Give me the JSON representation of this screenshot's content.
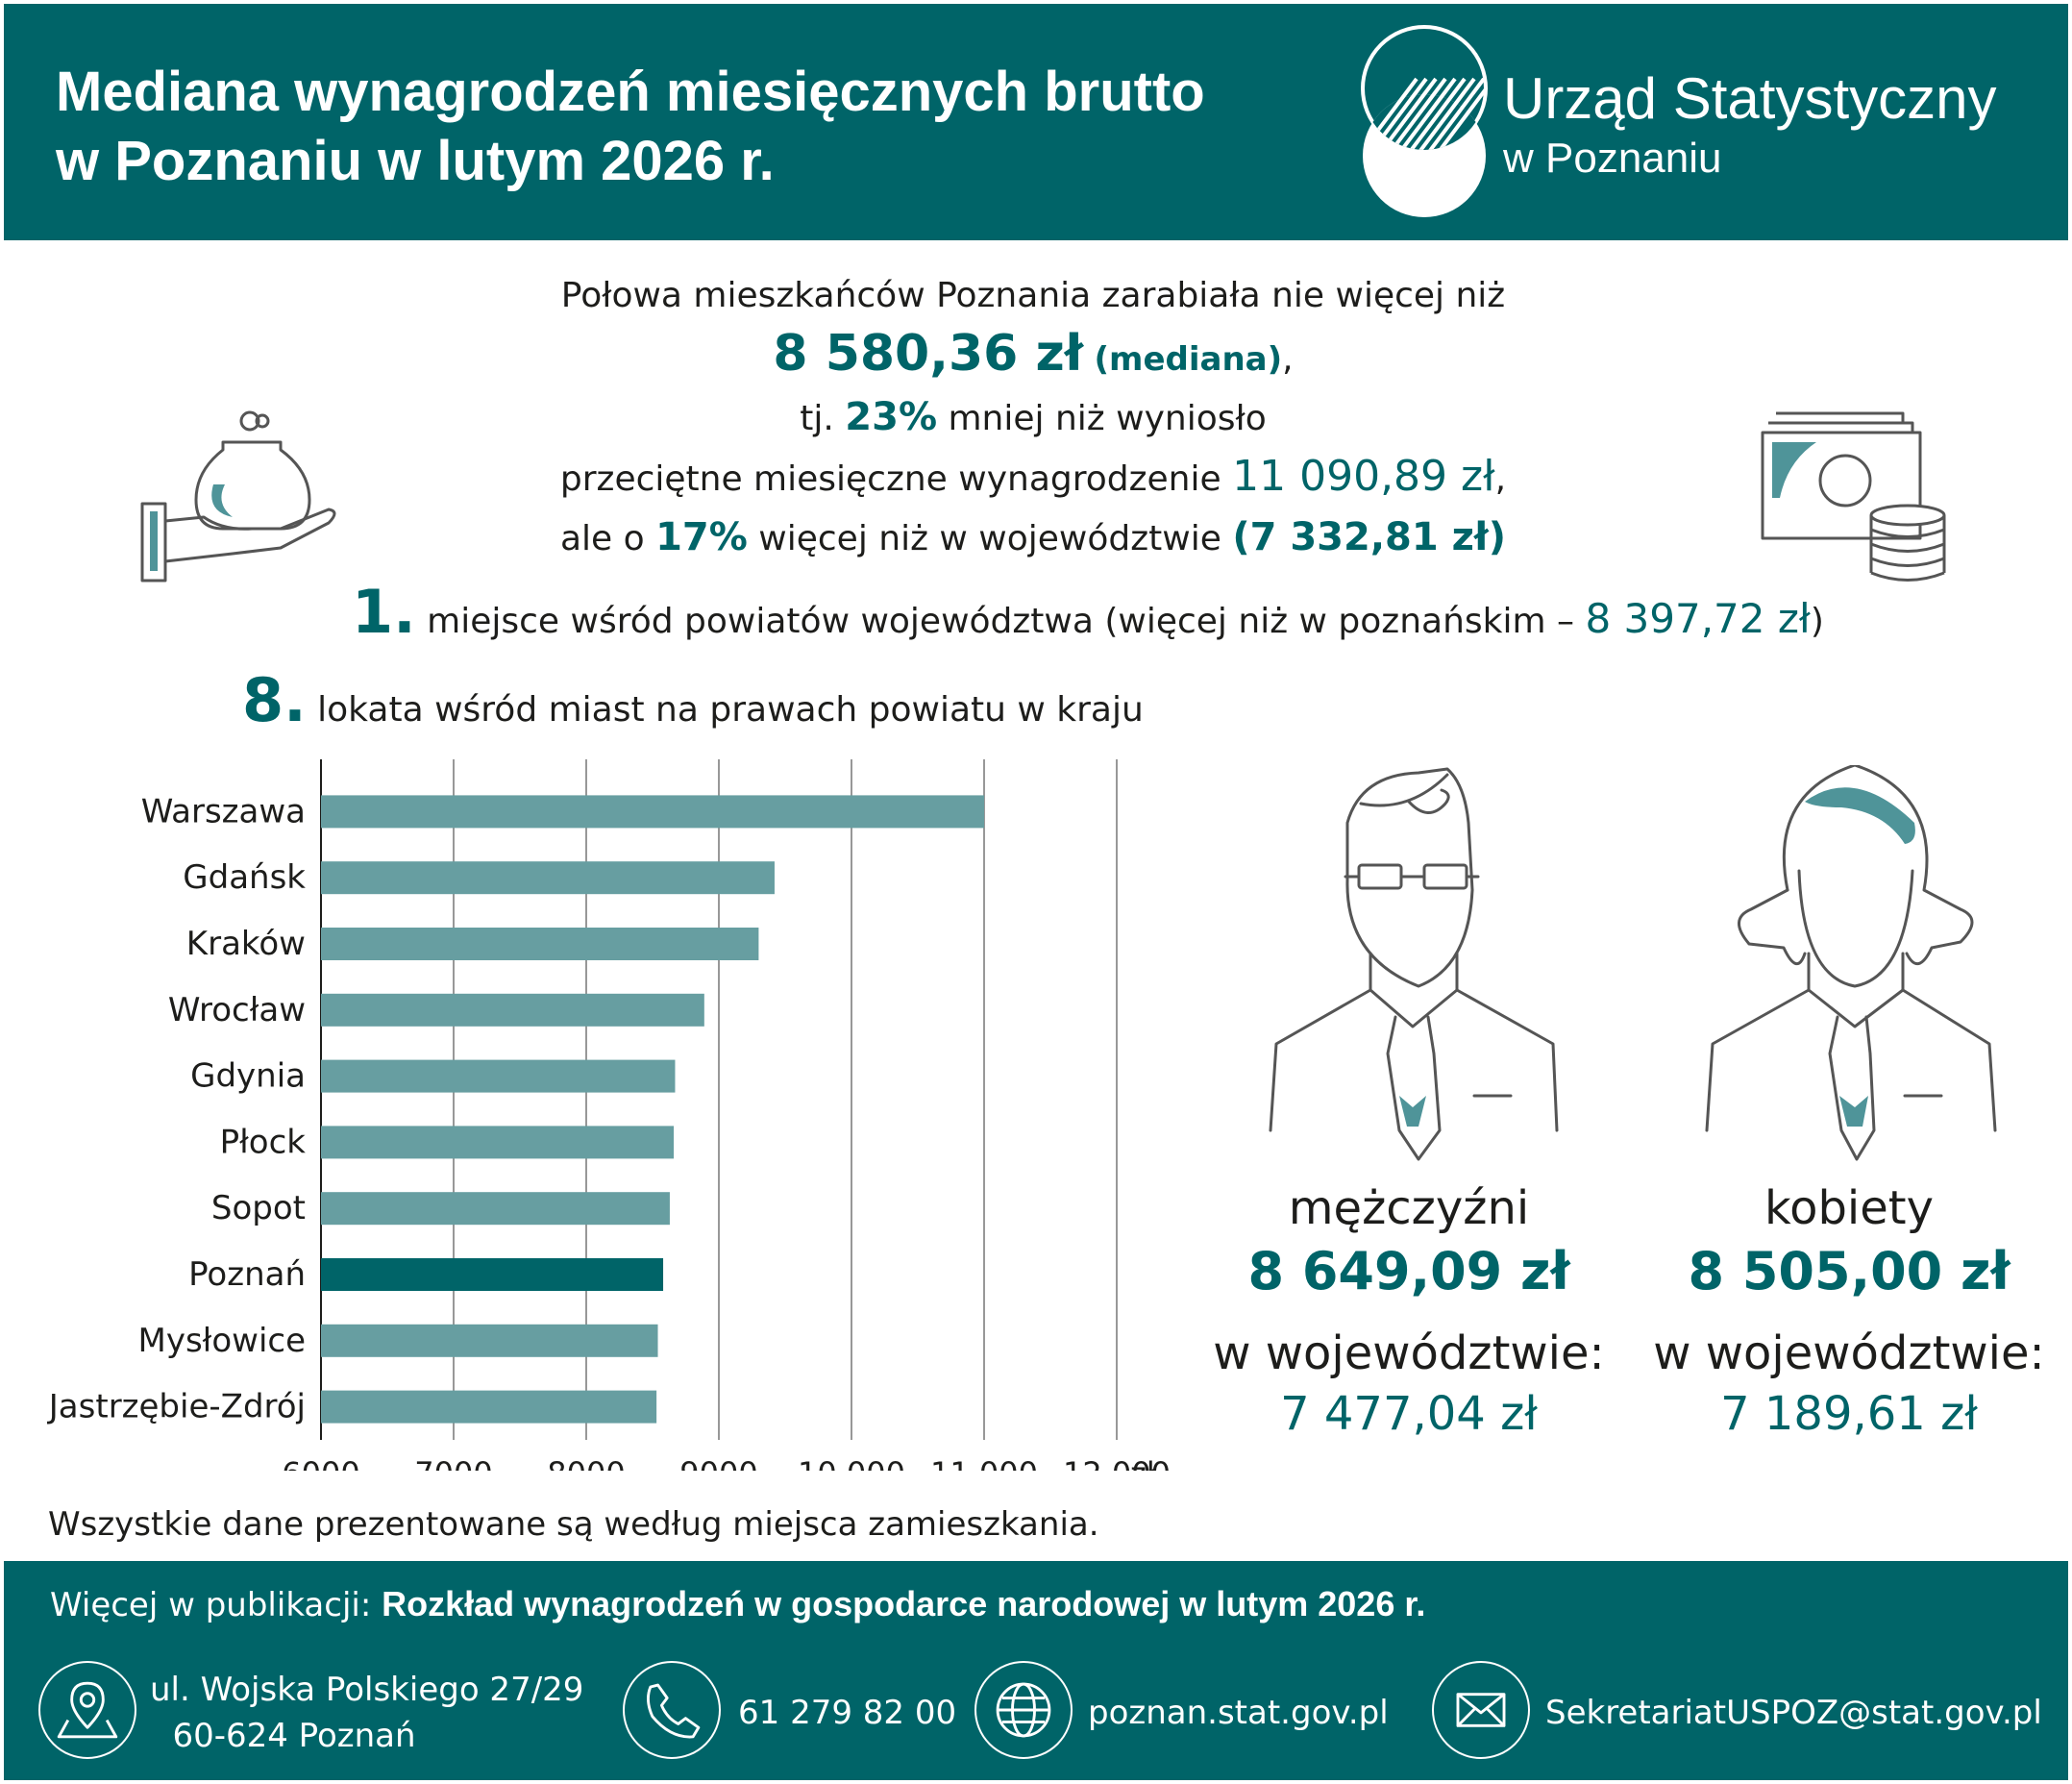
{
  "header": {
    "title_line1": "Mediana wynagrodzeń miesięcznych brutto",
    "title_line2": "w Poznaniu w lutym 2026 r.",
    "office_line1": "Urząd Statystyczny",
    "office_line2": "w Poznaniu"
  },
  "intro": {
    "line1": "Połowa mieszkańców Poznania zarabiała nie więcej niż",
    "median": "8 580,36 zł",
    "median_label": "(mediana)",
    "line3_a": "tj.",
    "pct_less": "23%",
    "line3_b": "mniej niż wyniosło",
    "line4_a": "przeciętne miesięczne wynagrodzenie",
    "avg": "11 090,89 zł",
    "line5_a": "ale o",
    "pct_more": "17%",
    "line5_b": "więcej niż w województwie",
    "voiv": "(7 332,81 zł)"
  },
  "rank1": {
    "num": "1.",
    "text": "miejsce wśród powiatów województwa (więcej niż w poznańskim –",
    "value": "8 397,72 zł",
    "close": ")"
  },
  "rank2": {
    "num": "8.",
    "text": "lokata wśród miast na prawach powiatu w kraju"
  },
  "chart_data": {
    "type": "bar",
    "orientation": "horizontal",
    "categories": [
      "Warszawa",
      "Gdańsk",
      "Kraków",
      "Wrocław",
      "Gdynia",
      "Płock",
      "Sopot",
      "Poznań",
      "Mysłowice",
      "Jastrzębie-Zdrój"
    ],
    "values": [
      11000,
      9420,
      9300,
      8890,
      8670,
      8660,
      8630,
      8580,
      8540,
      8530
    ],
    "highlight": "Poznań",
    "xlim": [
      6000,
      12000
    ],
    "xticks": [
      "6000",
      "7000",
      "8000",
      "9000",
      "10 000",
      "11 000",
      "12 000"
    ],
    "x_unit": "zł",
    "grid": "vertical",
    "colors": {
      "bar": "#679ea1",
      "highlight": "#006468"
    }
  },
  "men": {
    "label": "mężczyźni",
    "amount": "8 649,09 zł",
    "region_label": "w województwie:",
    "region_value": "7 477,04 zł"
  },
  "women": {
    "label": "kobiety",
    "amount": "8 505,00 zł",
    "region_label": "w województwie:",
    "region_value": "7 189,61 zł"
  },
  "note": "Wszystkie dane prezentowane są według miejsca zamieszkania.",
  "footer": {
    "pub_prefix": "Więcej w publikacji:",
    "pub_title": "Rozkład wynagrodzeń w gospodarce narodowej w lutym 2026 r.",
    "address_line1": "ul. Wojska Polskiego 27/29",
    "address_line2": "60-624 Poznań",
    "phone": "61 279 82 00",
    "website": "poznan.stat.gov.pl",
    "email": "SekretariatUSPOZ@stat.gov.pl"
  },
  "colors": {
    "primary": "#006468",
    "bar": "#679ea1",
    "icon_accent": "#4f9499",
    "outline": "#555555"
  }
}
